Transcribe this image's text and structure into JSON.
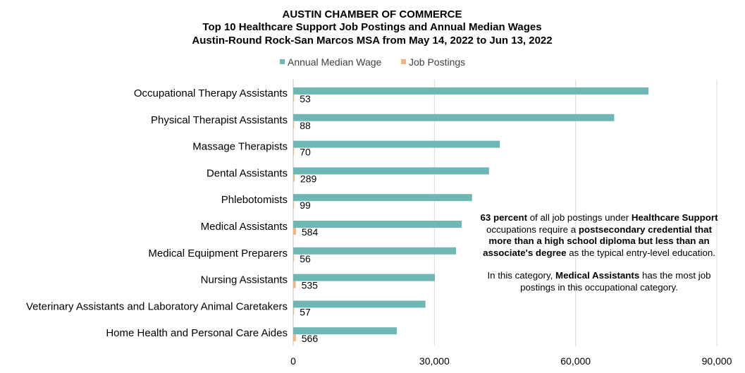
{
  "chart_data": {
    "type": "bar",
    "orientation": "horizontal",
    "title_lines": [
      "AUSTIN CHAMBER OF COMMERCE",
      "Top 10 Healthcare Support Job Postings and Annual Median Wages",
      "Austin-Round Rock-San Marcos MSA from May 14, 2022 to Jun 13, 2022"
    ],
    "categories": [
      "Occupational Therapy Assistants",
      "Physical Therapist Assistants",
      "Massage Therapists",
      "Dental Assistants",
      "Phlebotomists",
      "Medical Assistants",
      "Medical Equipment Preparers",
      "Nursing Assistants",
      "Veterinary Assistants and Laboratory Animal Caretakers",
      "Home Health and Personal Care Aides"
    ],
    "series": [
      {
        "name": "Annual Median Wage",
        "color": "#6fb7b4",
        "values": [
          75500,
          68200,
          43900,
          41600,
          38000,
          35800,
          34600,
          30100,
          28100,
          22000
        ]
      },
      {
        "name": "Job Postings",
        "color": "#f3b482",
        "values": [
          53,
          88,
          70,
          289,
          99,
          584,
          56,
          535,
          57,
          566
        ],
        "data_labels": [
          "53",
          "88",
          "70",
          "289",
          "99",
          "584",
          "56",
          "535",
          "57",
          "566"
        ]
      }
    ],
    "xlim": [
      0,
      90000
    ],
    "x_ticks": [
      "0",
      "30,000",
      "60,000",
      "90,000"
    ],
    "grid": true,
    "legend_position": "top"
  },
  "annotation": {
    "p1": {
      "a": "63 percent",
      "b": " of all job postings under ",
      "c": "Healthcare Support",
      "d": " occupations require a ",
      "e": "postsecondary credential that more than a high school diploma but less than an associate's degree",
      "f": " as the typical entry-level education."
    },
    "p2": {
      "a": "In this category, ",
      "b": "Medical Assistants",
      "c": " has the most job postings in this occupational category."
    }
  }
}
